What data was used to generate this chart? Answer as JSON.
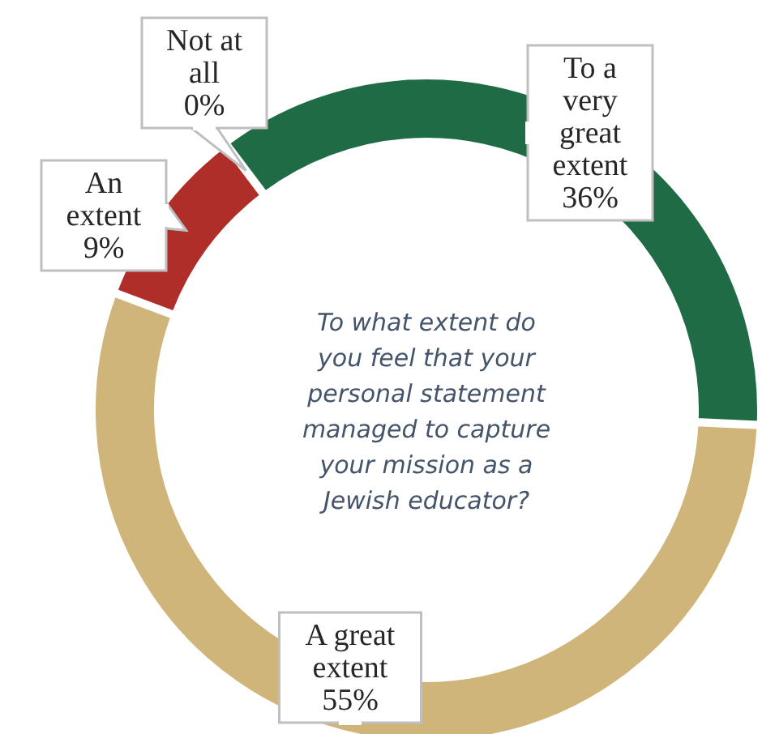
{
  "chart_data": {
    "type": "donut",
    "title": "To what extent do you feel that your personal statement managed to capture your mission as a Jewish educator?",
    "categories": [
      "To a very great extent",
      "A great extent",
      "An extent",
      "Not at all"
    ],
    "values": [
      36,
      55,
      9,
      0
    ],
    "value_labels": [
      "36%",
      "55%",
      "9%",
      "0%"
    ],
    "colors": [
      "#1e6b45",
      "#cfb57a",
      "#b02e2a",
      "#7f7f7f"
    ]
  }
}
